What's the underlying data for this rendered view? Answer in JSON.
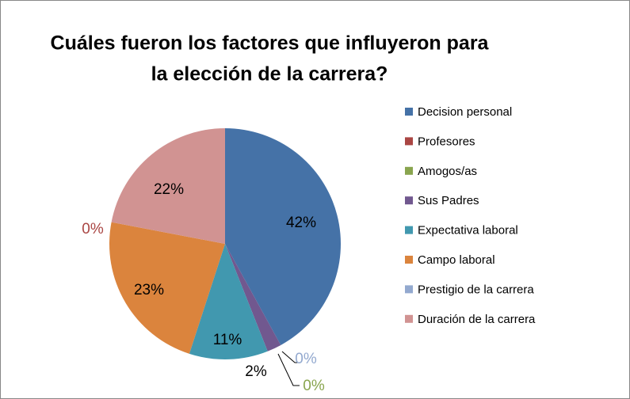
{
  "chart_data": {
    "type": "pie",
    "title": [
      "Cuáles fueron los factores que influyeron para",
      "la elección de la carrera?"
    ],
    "categories": [
      "Decision personal",
      "Profesores",
      "Amogos/as",
      "Sus Padres",
      "Expectativa laboral",
      "Campo laboral",
      "Prestigio de la carrera",
      "Duración de la carrera"
    ],
    "values": [
      42,
      0,
      0,
      2,
      11,
      23,
      0,
      22
    ],
    "value_labels": [
      "42%",
      "0%",
      "0%",
      "2%",
      "11%",
      "23%",
      "0%",
      "22%"
    ],
    "colors": [
      "#4572a7",
      "#aa4643",
      "#89a54e",
      "#71588f",
      "#4198af",
      "#db843d",
      "#93a9cf",
      "#d19392"
    ],
    "legend": "right"
  }
}
